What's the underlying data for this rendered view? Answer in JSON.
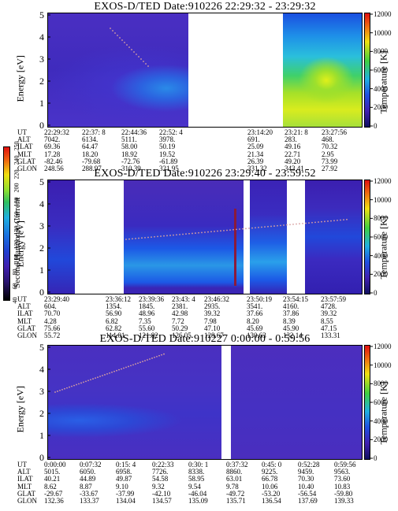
{
  "panels": [
    {
      "title": "EXOS-D/TED   Date:910226   22:29:32 - 23:29:32",
      "ylabel": "Energy [eV]",
      "rlabel": "Temperature [K]",
      "y_ticks": [
        "0",
        "1",
        "2",
        "3",
        "4",
        "5"
      ],
      "r_ticks": [
        "0",
        "2000",
        "4000",
        "6000",
        "8000",
        "10000",
        "12000"
      ],
      "eph_labels": [
        "UT",
        "ALT",
        "ILAT",
        "MLT",
        "GLAT",
        "GLON"
      ],
      "eph_cols": [
        [
          "22:29:32",
          "7042.",
          "69.36",
          "17.28",
          "-82.46",
          "248.56"
        ],
        [
          "22:37: 8",
          "6134.",
          "64.47",
          "18.20",
          "-79.68",
          "288.97"
        ],
        [
          "22:44:36",
          "5111.",
          "58.00",
          "18.92",
          "-72.76",
          "310.39"
        ],
        [
          "22:52: 4",
          "3978.",
          "50.19",
          "19.52",
          "-61.89",
          "321.95"
        ],
        [
          "23:14:20",
          "691.",
          "25.09",
          "21.34",
          "26.39",
          "331.32"
        ],
        [
          "23:21: 8",
          "283.",
          "49.16",
          "22.71",
          "49.20",
          "343.41"
        ],
        [
          "23:27:56",
          "468.",
          "70.32",
          "2.95",
          "73.99",
          "27.92"
        ]
      ]
    },
    {
      "title": "EXOS-D/TED   Date:910226   23:29:40 - 23:59:52",
      "ylabel": "Energy [eV]",
      "rlabel": "Temperature [K]",
      "y_ticks": [
        "0",
        "1",
        "2",
        "3",
        "4",
        "5"
      ],
      "r_ticks": [
        "0",
        "2000",
        "4000",
        "6000",
        "8000",
        "10000",
        "12000"
      ],
      "eph_labels": [
        "UT",
        "ALT",
        "ILAT",
        "MLT",
        "GLAT",
        "GLON"
      ],
      "eph_cols": [
        [
          "23:29:40",
          "604.",
          "70.70",
          "4.28",
          "75.66",
          "55.72"
        ],
        [
          "23:36:12",
          "1354.",
          "56.90",
          "6.82",
          "62.82",
          "114.01"
        ],
        [
          "23:39:36",
          "1845.",
          "48.96",
          "7.35",
          "55.60",
          "121.82"
        ],
        [
          "23:43: 4",
          "2381.",
          "42.98",
          "7.72",
          "50.29",
          "126.05"
        ],
        [
          "23:46:32",
          "2935.",
          "39.32",
          "7.98",
          "47.10",
          "128.67"
        ],
        [
          "23:50:19",
          "3541.",
          "37.66",
          "8.20",
          "45.69",
          "130.63"
        ],
        [
          "23:54:15",
          "4160.",
          "37.86",
          "8.39",
          "45.90",
          "132.14"
        ],
        [
          "23:57:59",
          "4728.",
          "39.32",
          "8.55",
          "47.15",
          "133.31"
        ]
      ]
    },
    {
      "title": "EXOS-D/TED   Date:910227   0:00:00 - 0:59:56",
      "ylabel": "Energy [eV]",
      "rlabel": "Temperature [K]",
      "y_ticks": [
        "0",
        "1",
        "2",
        "3",
        "4",
        "5"
      ],
      "r_ticks": [
        "0",
        "2000",
        "4000",
        "6000",
        "8000",
        "10000",
        "12000"
      ],
      "eph_labels": [
        "UT",
        "ALT",
        "ILAT",
        "MLT",
        "GLAT",
        "GLON"
      ],
      "eph_cols": [
        [
          "0:00:00",
          "5015.",
          "40.21",
          "8.62",
          "-29.67",
          "132.36"
        ],
        [
          "0:07:32",
          "6050.",
          "44.89",
          "8.87",
          "-33.67",
          "133.37"
        ],
        [
          "0:15: 4",
          "6958.",
          "49.87",
          "9.10",
          "-37.99",
          "134.04"
        ],
        [
          "0:22:33",
          "7726.",
          "54.58",
          "9.32",
          "-42.10",
          "134.57"
        ],
        [
          "0:30: 1",
          "8338.",
          "58.95",
          "9.54",
          "-46.04",
          "135.09"
        ],
        [
          "0:37:32",
          "8860.",
          "63.01",
          "9.78",
          "-49.72",
          "135.71"
        ],
        [
          "0:45: 0",
          "9225.",
          "66.78",
          "10.06",
          "-53.20",
          "136.54"
        ],
        [
          "0:52:28",
          "9459.",
          "70.30",
          "10.40",
          "-56.54",
          "137.69"
        ],
        [
          "0:59:56",
          "9563.",
          "73.60",
          "10.83",
          "-59.80",
          "139.33"
        ]
      ]
    }
  ],
  "colorbar": {
    "label": "Second Harmonic Current",
    "ticks": [
      "40",
      "60",
      "80",
      "100",
      "120",
      "140",
      "160",
      "180",
      "200",
      "220",
      "240",
      "250"
    ]
  },
  "chart_data": [
    {
      "type": "heatmap",
      "title": "EXOS-D/TED   Date:910226   22:29:32 - 23:29:32",
      "xlabel": "UT",
      "ylabel": "Energy [eV]",
      "y2label": "Temperature [K]",
      "ylim": [
        0,
        5
      ],
      "y2lim": [
        0,
        12000
      ],
      "x_ticks": [
        "22:29:32",
        "22:37: 8",
        "22:44:36",
        "22:52: 4",
        "23:14:20",
        "23:21: 8",
        "23:27:56"
      ]
    },
    {
      "type": "heatmap",
      "title": "EXOS-D/TED   Date:910226   23:29:40 - 23:59:52",
      "xlabel": "UT",
      "ylabel": "Energy [eV]",
      "y2label": "Temperature [K]",
      "ylim": [
        0,
        5
      ],
      "y2lim": [
        0,
        12000
      ],
      "x_ticks": [
        "23:29:40",
        "23:36:12",
        "23:39:36",
        "23:43: 4",
        "23:46:32",
        "23:50:19",
        "23:54:15",
        "23:57:59"
      ]
    },
    {
      "type": "heatmap",
      "title": "EXOS-D/TED   Date:910227   0:00:00 - 0:59:56",
      "xlabel": "UT",
      "ylabel": "Energy [eV]",
      "y2label": "Temperature [K]",
      "ylim": [
        0,
        5
      ],
      "y2lim": [
        0,
        12000
      ],
      "x_ticks": [
        "0:00:00",
        "0:07:32",
        "0:15: 4",
        "0:22:33",
        "0:30: 1",
        "0:37:32",
        "0:45: 0",
        "0:52:28",
        "0:59:56"
      ]
    }
  ],
  "colors": {
    "background": "#5a2fbf",
    "deep": "#3b1fa8",
    "blue": "#1d4fe6",
    "cyan": "#1aa7e8",
    "green": "#35d14a",
    "yellow": "#e6f01c"
  }
}
